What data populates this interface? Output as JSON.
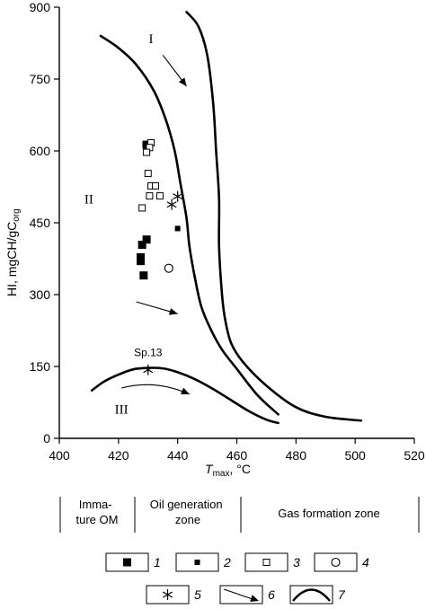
{
  "chart_data": {
    "type": "scatter",
    "xlabel": "T",
    "xlabel_sub": "max",
    "xlabel_unit": ", °C",
    "ylabel": "HI, mgCH/gC",
    "ylabel_sub": "org",
    "xlim": [
      400,
      520
    ],
    "ylim": [
      0,
      900
    ],
    "x_ticks": [
      400,
      420,
      440,
      460,
      480,
      500,
      520
    ],
    "y_ticks": [
      0,
      150,
      300,
      450,
      600,
      750,
      900
    ],
    "region_labels": [
      {
        "text": "I",
        "x": 431,
        "y": 825
      },
      {
        "text": "II",
        "x": 410,
        "y": 490
      },
      {
        "text": "III",
        "x": 421,
        "y": 52
      }
    ],
    "annotation": {
      "text": "Sp.13",
      "x": 430,
      "y": 172
    },
    "boundary_curves": [
      {
        "name": "type I",
        "points": [
          [
            443,
            890
          ],
          [
            447,
            860
          ],
          [
            450,
            800
          ],
          [
            452,
            700
          ],
          [
            453,
            600
          ],
          [
            454,
            500
          ],
          [
            454,
            400
          ],
          [
            455,
            300
          ],
          [
            456,
            250
          ],
          [
            458,
            200
          ],
          [
            462,
            160
          ],
          [
            470,
            110
          ],
          [
            480,
            65
          ],
          [
            490,
            45
          ],
          [
            502,
            37
          ]
        ]
      },
      {
        "name": "type II",
        "points": [
          [
            414,
            840
          ],
          [
            420,
            815
          ],
          [
            426,
            780
          ],
          [
            432,
            725
          ],
          [
            436,
            665
          ],
          [
            439,
            600
          ],
          [
            441,
            530
          ],
          [
            443,
            460
          ],
          [
            444,
            400
          ],
          [
            446,
            330
          ],
          [
            448,
            275
          ],
          [
            451,
            230
          ],
          [
            455,
            185
          ],
          [
            460,
            145
          ],
          [
            467,
            90
          ],
          [
            474,
            50
          ]
        ]
      },
      {
        "name": "type III",
        "points": [
          [
            411,
            100
          ],
          [
            415,
            118
          ],
          [
            420,
            133
          ],
          [
            425,
            144
          ],
          [
            430,
            147
          ],
          [
            435,
            146
          ],
          [
            440,
            138
          ],
          [
            446,
            123
          ],
          [
            452,
            103
          ],
          [
            458,
            80
          ],
          [
            464,
            57
          ],
          [
            470,
            39
          ],
          [
            474,
            32
          ]
        ]
      }
    ],
    "series": [
      {
        "legend": "1",
        "marker": "square-large",
        "points": [
          [
            429.5,
            613
          ],
          [
            429.5,
            415
          ],
          [
            428,
            404
          ],
          [
            427.5,
            378
          ],
          [
            427.5,
            370
          ],
          [
            428.5,
            340
          ]
        ]
      },
      {
        "legend": "2",
        "marker": "square-small",
        "points": [
          [
            429,
            612
          ],
          [
            440,
            438
          ]
        ]
      },
      {
        "legend": "3",
        "marker": "square-open",
        "points": [
          [
            431,
            617
          ],
          [
            430.5,
            607
          ],
          [
            429.5,
            597
          ],
          [
            430,
            553
          ],
          [
            431,
            527
          ],
          [
            432.5,
            527
          ],
          [
            430.5,
            506
          ],
          [
            434,
            506
          ],
          [
            428,
            481
          ]
        ]
      },
      {
        "legend": "4",
        "marker": "circle-open",
        "points": [
          [
            437,
            355
          ]
        ]
      },
      {
        "legend": "5",
        "marker": "asterisk",
        "points": [
          [
            438,
            488
          ],
          [
            440,
            505
          ],
          [
            430,
            143
          ]
        ]
      }
    ],
    "arrows": [
      {
        "from": [
          435,
          800
        ],
        "to": [
          443,
          735
        ]
      },
      {
        "from": [
          426,
          285
        ],
        "to": [
          440,
          260
        ]
      },
      {
        "from": [
          421,
          105
        ],
        "to": [
          444,
          92
        ],
        "curved": true
      }
    ]
  },
  "zones": [
    {
      "label": "Imma-\nture OM"
    },
    {
      "label": "Oil generation\nzone"
    },
    {
      "label": "Gas formation zone"
    }
  ],
  "legend_items": [
    {
      "num": "1",
      "symbol": "square-large"
    },
    {
      "num": "2",
      "symbol": "square-small"
    },
    {
      "num": "3",
      "symbol": "square-open"
    },
    {
      "num": "4",
      "symbol": "circle-open"
    },
    {
      "num": "5",
      "symbol": "asterisk"
    },
    {
      "num": "6",
      "symbol": "arrow"
    },
    {
      "num": "7",
      "symbol": "curve"
    }
  ]
}
